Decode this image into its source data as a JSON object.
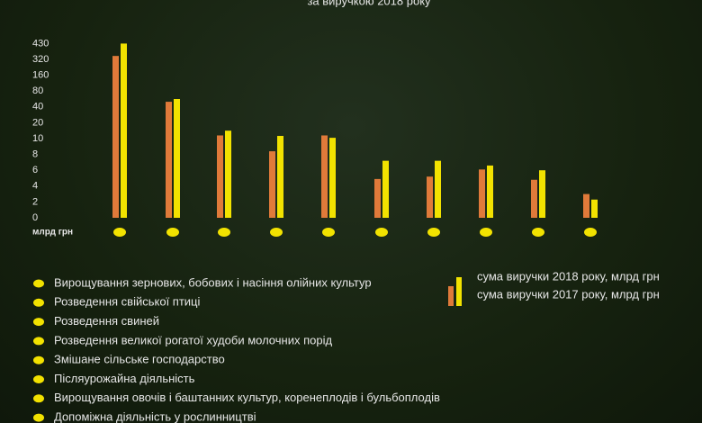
{
  "chart_data": {
    "type": "bar",
    "title": "за виручкою 2018 року",
    "y_unit": "млрд грн",
    "yscale": "ticks-evenly-spaced",
    "ylim": [
      0,
      430
    ],
    "yticks": [
      0,
      2,
      4,
      6,
      8,
      10,
      20,
      40,
      80,
      160,
      320,
      430
    ],
    "categories": [
      "Вирощування зернових, бобових і насіння олійних культур",
      "Розведення свійської птиці",
      "Розведення свиней",
      "Розведення великої рогатої худоби молочних порід",
      "Змішане сільське господарство",
      "Післяурожайна діяльність",
      "Вирощування овочів і баштанних культур, коренеплодів і бульбоплодів",
      "Допоміжна діяльність у рослинництві",
      null,
      null
    ],
    "series": [
      {
        "name": "сума виручки 2017 року, млрд грн",
        "color": "#e07a3a",
        "values": [
          344,
          53,
          12,
          8.4,
          12,
          4.9,
          5.2,
          6.1,
          4.8,
          3.0
        ]
      },
      {
        "name": "сума виручки 2018 року, млрд грн",
        "color": "#f2e200",
        "values": [
          430,
          60,
          15,
          11.7,
          10.5,
          7.2,
          7.2,
          6.6,
          6.0,
          2.3
        ]
      }
    ]
  }
}
